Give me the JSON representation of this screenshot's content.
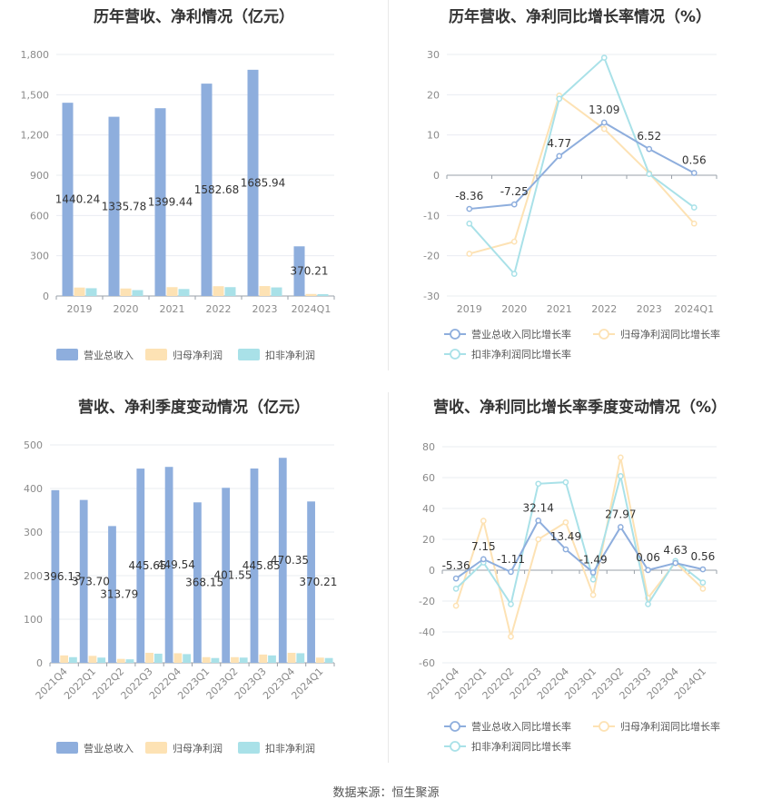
{
  "source_text": "数据来源：恒生聚源",
  "chart_data": [
    {
      "type": "bar",
      "title": "历年营收、净利情况（亿元）",
      "categories": [
        "2019",
        "2020",
        "2021",
        "2022",
        "2023",
        "2024Q1"
      ],
      "ylim": [
        0,
        1800
      ],
      "yticks": [
        "0",
        "300",
        "600",
        "900",
        "1,200",
        "1,500",
        "1,800"
      ],
      "grid": true,
      "legend_position": "bottom",
      "series": [
        {
          "name": "营业总收入",
          "color": "#8eaedd",
          "values": [
            1440.24,
            1335.78,
            1399.44,
            1582.68,
            1685.94,
            370.21
          ],
          "labels": [
            "1440.24",
            "1335.78",
            "1399.44",
            "1582.68",
            "1685.94",
            "370.21"
          ]
        },
        {
          "name": "归母净利润",
          "color": "#fde2b4",
          "values": [
            63,
            56,
            66,
            73,
            74,
            15
          ]
        },
        {
          "name": "扣非净利润",
          "color": "#a9e1e8",
          "values": [
            58,
            44,
            52,
            66,
            64,
            14
          ]
        }
      ]
    },
    {
      "type": "line",
      "title": "历年营收、净利同比增长率情况（%）",
      "categories": [
        "2019",
        "2020",
        "2021",
        "2022",
        "2023",
        "2024Q1"
      ],
      "ylim": [
        -30,
        30
      ],
      "yticks": [
        "-30",
        "-20",
        "-10",
        "0",
        "10",
        "20",
        "30"
      ],
      "grid": true,
      "legend_position": "bottom",
      "series": [
        {
          "name": "营业总收入同比增长率",
          "color": "#8eaedd",
          "values": [
            -8.36,
            -7.25,
            4.77,
            13.09,
            6.52,
            0.56
          ],
          "labels": [
            "-8.36",
            "-7.25",
            "4.77",
            "13.09",
            "6.52",
            "0.56"
          ]
        },
        {
          "name": "归母净利润同比增长率",
          "color": "#fde2b4",
          "values": [
            -19.5,
            -16.5,
            19.8,
            11.5,
            0.5,
            -12
          ]
        },
        {
          "name": "扣非净利润同比增长率",
          "color": "#a9e1e8",
          "values": [
            -12,
            -24.5,
            19,
            29.2,
            0.3,
            -8
          ]
        }
      ]
    },
    {
      "type": "bar",
      "title": "营收、净利季度变动情况（亿元）",
      "categories": [
        "2021Q4",
        "2022Q1",
        "2022Q2",
        "2022Q3",
        "2022Q4",
        "2023Q1",
        "2023Q2",
        "2023Q3",
        "2023Q4",
        "2024Q1"
      ],
      "ylim": [
        0,
        500
      ],
      "yticks": [
        "0",
        "100",
        "200",
        "300",
        "400",
        "500"
      ],
      "grid": true,
      "legend_position": "bottom",
      "series": [
        {
          "name": "营业总收入",
          "color": "#8eaedd",
          "values": [
            396.13,
            373.7,
            313.79,
            445.65,
            449.54,
            368.15,
            401.55,
            445.85,
            470.35,
            370.21
          ],
          "labels": [
            "396.13",
            "373.70",
            "313.79",
            "445.65",
            "449.54",
            "368.15",
            "401.55",
            "445.85",
            "470.35",
            "370.21"
          ]
        },
        {
          "name": "归母净利润",
          "color": "#fde2b4",
          "values": [
            17,
            16,
            9,
            23,
            22,
            13,
            13,
            19,
            23,
            12
          ]
        },
        {
          "name": "扣非净利润",
          "color": "#a9e1e8",
          "values": [
            13,
            12,
            8,
            21,
            20,
            11,
            12,
            17,
            22,
            11
          ]
        }
      ]
    },
    {
      "type": "line",
      "title": "营收、净利同比增长率季度变动情况（%）",
      "categories": [
        "2021Q4",
        "2022Q1",
        "2022Q2",
        "2022Q3",
        "2022Q4",
        "2023Q1",
        "2023Q2",
        "2023Q3",
        "2023Q4",
        "2024Q1"
      ],
      "ylim": [
        -60,
        80
      ],
      "yticks": [
        "-60",
        "-40",
        "-20",
        "0",
        "20",
        "40",
        "60",
        "80"
      ],
      "grid": true,
      "legend_position": "bottom",
      "series": [
        {
          "name": "营业总收入同比增长率",
          "color": "#8eaedd",
          "values": [
            -5.36,
            7.15,
            -1.11,
            32.14,
            13.49,
            -1.49,
            27.97,
            0.06,
            4.63,
            0.56
          ],
          "labels": [
            "-5.36",
            "7.15",
            "-1.11",
            "32.14",
            "13.49",
            "-1.49",
            "27.97",
            "0.06",
            "4.63",
            "0.56"
          ]
        },
        {
          "name": "归母净利润同比增长率",
          "color": "#fde2b4",
          "values": [
            -23,
            32,
            -43,
            20,
            31,
            -16,
            73,
            -18,
            5,
            -12
          ]
        },
        {
          "name": "扣非净利润同比增长率",
          "color": "#a9e1e8",
          "values": [
            -12,
            5,
            -22,
            56,
            57,
            -6,
            61,
            -22,
            6,
            -8
          ]
        }
      ]
    }
  ]
}
